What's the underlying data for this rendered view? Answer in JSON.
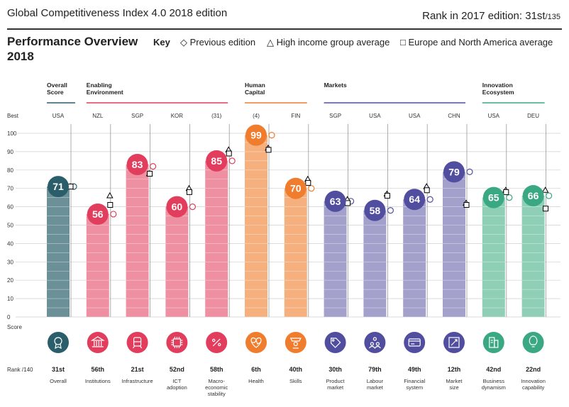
{
  "header": {
    "title": "Global Competitiveness Index 4.0 2018 edition",
    "rank_prefix": "Rank in 2017 edition: 31st",
    "rank_suffix": "/135"
  },
  "overview": {
    "title_line1": "Performance Overview",
    "title_line2": "2018"
  },
  "key": {
    "label": "Key",
    "previous": "Previous edition",
    "high_income": "High income group average",
    "europe": "Europe and North America average"
  },
  "labels": {
    "best": "Best",
    "score": "Score",
    "rank": "Rank /140"
  },
  "colors": {
    "overall": "#2a5e6b",
    "enabling": "#e23d5c",
    "human": "#ef7d2d",
    "markets": "#514ea0",
    "innovation": "#3aa883"
  },
  "groups": [
    {
      "name_lines": [
        "Overall",
        "Score"
      ],
      "color_key": "overall",
      "pillars": [
        0
      ]
    },
    {
      "name_lines": [
        "Enabling",
        "Environment"
      ],
      "color_key": "enabling",
      "pillars": [
        1,
        2,
        3,
        4
      ]
    },
    {
      "name_lines": [
        "Human",
        "Capital"
      ],
      "color_key": "human",
      "pillars": [
        5,
        6
      ]
    },
    {
      "name_lines": [
        "Markets"
      ],
      "color_key": "markets",
      "pillars": [
        7,
        8,
        9,
        10
      ]
    },
    {
      "name_lines": [
        "Innovation",
        "Ecosystem"
      ],
      "color_key": "innovation",
      "pillars": [
        11,
        12
      ]
    }
  ],
  "chart_data": {
    "type": "bar",
    "ylim": [
      0,
      100
    ],
    "yticks": [
      0,
      10,
      20,
      30,
      40,
      50,
      60,
      70,
      80,
      90,
      100
    ],
    "categories": [
      "Overall",
      "Institutions",
      "Infrastructure",
      "ICT adoption",
      "Macro-economic stability",
      "Health",
      "Skills",
      "Product market",
      "Labour market",
      "Financial system",
      "Market size",
      "Business dynamism",
      "Innovation capability"
    ],
    "series": [
      {
        "name": "Score",
        "values": [
          71,
          56,
          83,
          60,
          85,
          99,
          70,
          63,
          58,
          64,
          79,
          65,
          66
        ]
      },
      {
        "name": "Previous edition",
        "values": [
          71,
          56,
          82,
          60,
          85,
          99,
          70,
          63,
          58,
          64,
          79,
          65,
          66
        ]
      },
      {
        "name": "High income group average",
        "values": [
          71,
          66,
          78,
          70,
          91,
          92,
          75,
          64,
          67,
          71,
          62,
          69,
          69
        ]
      },
      {
        "name": "Europe and North America average",
        "values": [
          71,
          61,
          78,
          68,
          89,
          91,
          73,
          62,
          66,
          69,
          61,
          68,
          59
        ]
      }
    ],
    "best": [
      "USA",
      "NZL",
      "SGP",
      "KOR",
      "(31)",
      "(4)",
      "FIN",
      "SGP",
      "USA",
      "USA",
      "CHN",
      "USA",
      "DEU"
    ],
    "ranks": [
      "31st",
      "56th",
      "21st",
      "52nd",
      "58th",
      "6th",
      "40th",
      "30th",
      "79th",
      "49th",
      "12th",
      "42nd",
      "22nd"
    ],
    "label_lines": [
      [
        "Overall"
      ],
      [
        "Institutions"
      ],
      [
        "Infrastructure"
      ],
      [
        "ICT",
        "adoption"
      ],
      [
        "Macro-",
        "economic",
        "stability"
      ],
      [
        "Health"
      ],
      [
        "Skills"
      ],
      [
        "Product",
        "market"
      ],
      [
        "Labour",
        "market"
      ],
      [
        "Financial",
        "system"
      ],
      [
        "Market",
        "size"
      ],
      [
        "Business",
        "dynamism"
      ],
      [
        "Innovation",
        "capability"
      ]
    ],
    "group_index": [
      0,
      1,
      1,
      1,
      1,
      2,
      2,
      3,
      3,
      3,
      3,
      4,
      4
    ],
    "icons": [
      "medal-icon",
      "institution-icon",
      "infrastructure-icon",
      "chip-icon",
      "percent-icon",
      "health-icon",
      "skills-icon",
      "tag-icon",
      "people-icon",
      "card-icon",
      "expand-icon",
      "building-icon",
      "bulb-icon"
    ]
  }
}
